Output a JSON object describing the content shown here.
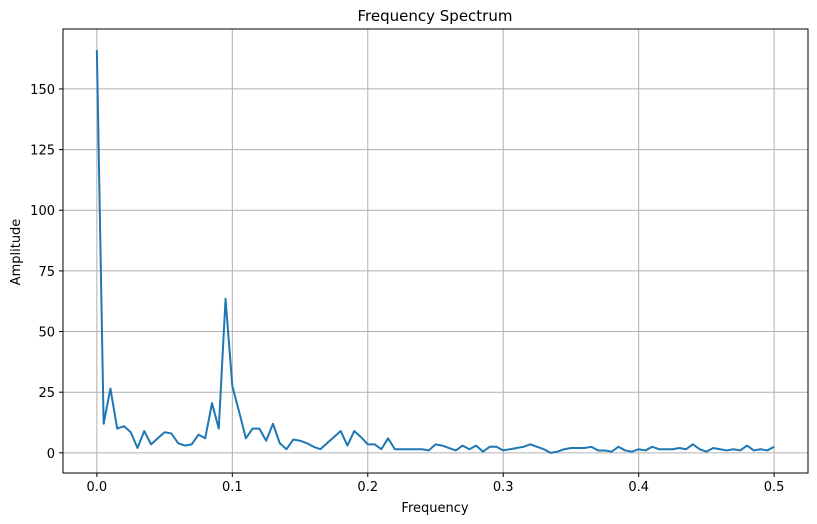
{
  "chart_data": {
    "type": "line",
    "title": "Frequency Spectrum",
    "xlabel": "Frequency",
    "ylabel": "Amplitude",
    "xlim": [
      -0.025,
      0.525
    ],
    "ylim": [
      -8.3,
      174.7
    ],
    "grid": true,
    "x_ticks": [
      0.0,
      0.1,
      0.2,
      0.3,
      0.4,
      0.5
    ],
    "x_tick_labels": [
      "0.0",
      "0.1",
      "0.2",
      "0.3",
      "0.4",
      "0.5"
    ],
    "y_ticks": [
      0,
      25,
      50,
      75,
      100,
      125,
      150
    ],
    "y_tick_labels": [
      "0",
      "25",
      "50",
      "75",
      "100",
      "125",
      "150"
    ],
    "line_color": "#1f77b4",
    "series": [
      {
        "x": [
          0.0,
          0.005,
          0.01,
          0.015,
          0.02,
          0.025,
          0.03,
          0.035,
          0.04,
          0.045,
          0.05,
          0.055,
          0.06,
          0.065,
          0.07,
          0.075,
          0.08,
          0.085,
          0.09,
          0.095,
          0.1,
          0.105,
          0.11,
          0.115,
          0.12,
          0.125,
          0.13,
          0.135,
          0.14,
          0.145,
          0.15,
          0.155,
          0.16,
          0.165,
          0.17,
          0.175,
          0.18,
          0.185,
          0.19,
          0.195,
          0.2,
          0.205,
          0.21,
          0.215,
          0.22,
          0.225,
          0.23,
          0.235,
          0.24,
          0.245,
          0.25,
          0.255,
          0.26,
          0.265,
          0.27,
          0.275,
          0.28,
          0.285,
          0.29,
          0.295,
          0.3,
          0.305,
          0.31,
          0.315,
          0.32,
          0.325,
          0.33,
          0.335,
          0.34,
          0.345,
          0.35,
          0.355,
          0.36,
          0.365,
          0.37,
          0.375,
          0.38,
          0.385,
          0.39,
          0.395,
          0.4,
          0.405,
          0.41,
          0.415,
          0.42,
          0.425,
          0.43,
          0.435,
          0.44,
          0.445,
          0.45,
          0.455,
          0.46,
          0.465,
          0.47,
          0.475,
          0.48,
          0.485,
          0.49,
          0.495,
          0.5
        ],
        "y": [
          166,
          12,
          26.5,
          10,
          11,
          8.5,
          2,
          9,
          3.5,
          6,
          8.5,
          8,
          4,
          3,
          3.5,
          7.5,
          6,
          20.5,
          10,
          63.5,
          27.5,
          17,
          6,
          10,
          10,
          5,
          12,
          4,
          1.5,
          5.5,
          5,
          4,
          2.5,
          1.5,
          4,
          6.5,
          9,
          3,
          9,
          6.5,
          3.5,
          3.5,
          1.5,
          6,
          1.5,
          1.5,
          1.5,
          1.5,
          1.5,
          1,
          3.5,
          3,
          2,
          1,
          3,
          1.5,
          3,
          0.5,
          2.5,
          2.5,
          1,
          1.5,
          2,
          2.5,
          3.5,
          2.5,
          1.5,
          0,
          0.5,
          1.5,
          2,
          2,
          2,
          2.5,
          1,
          1,
          0.5,
          2.5,
          1,
          0.5,
          1.5,
          1,
          2.5,
          1.5,
          1.5,
          1.5,
          2,
          1.5,
          3.5,
          1.5,
          0.5,
          2,
          1.5,
          1,
          1.5,
          1,
          3,
          1,
          1.5,
          1,
          2.5
        ]
      }
    ]
  }
}
